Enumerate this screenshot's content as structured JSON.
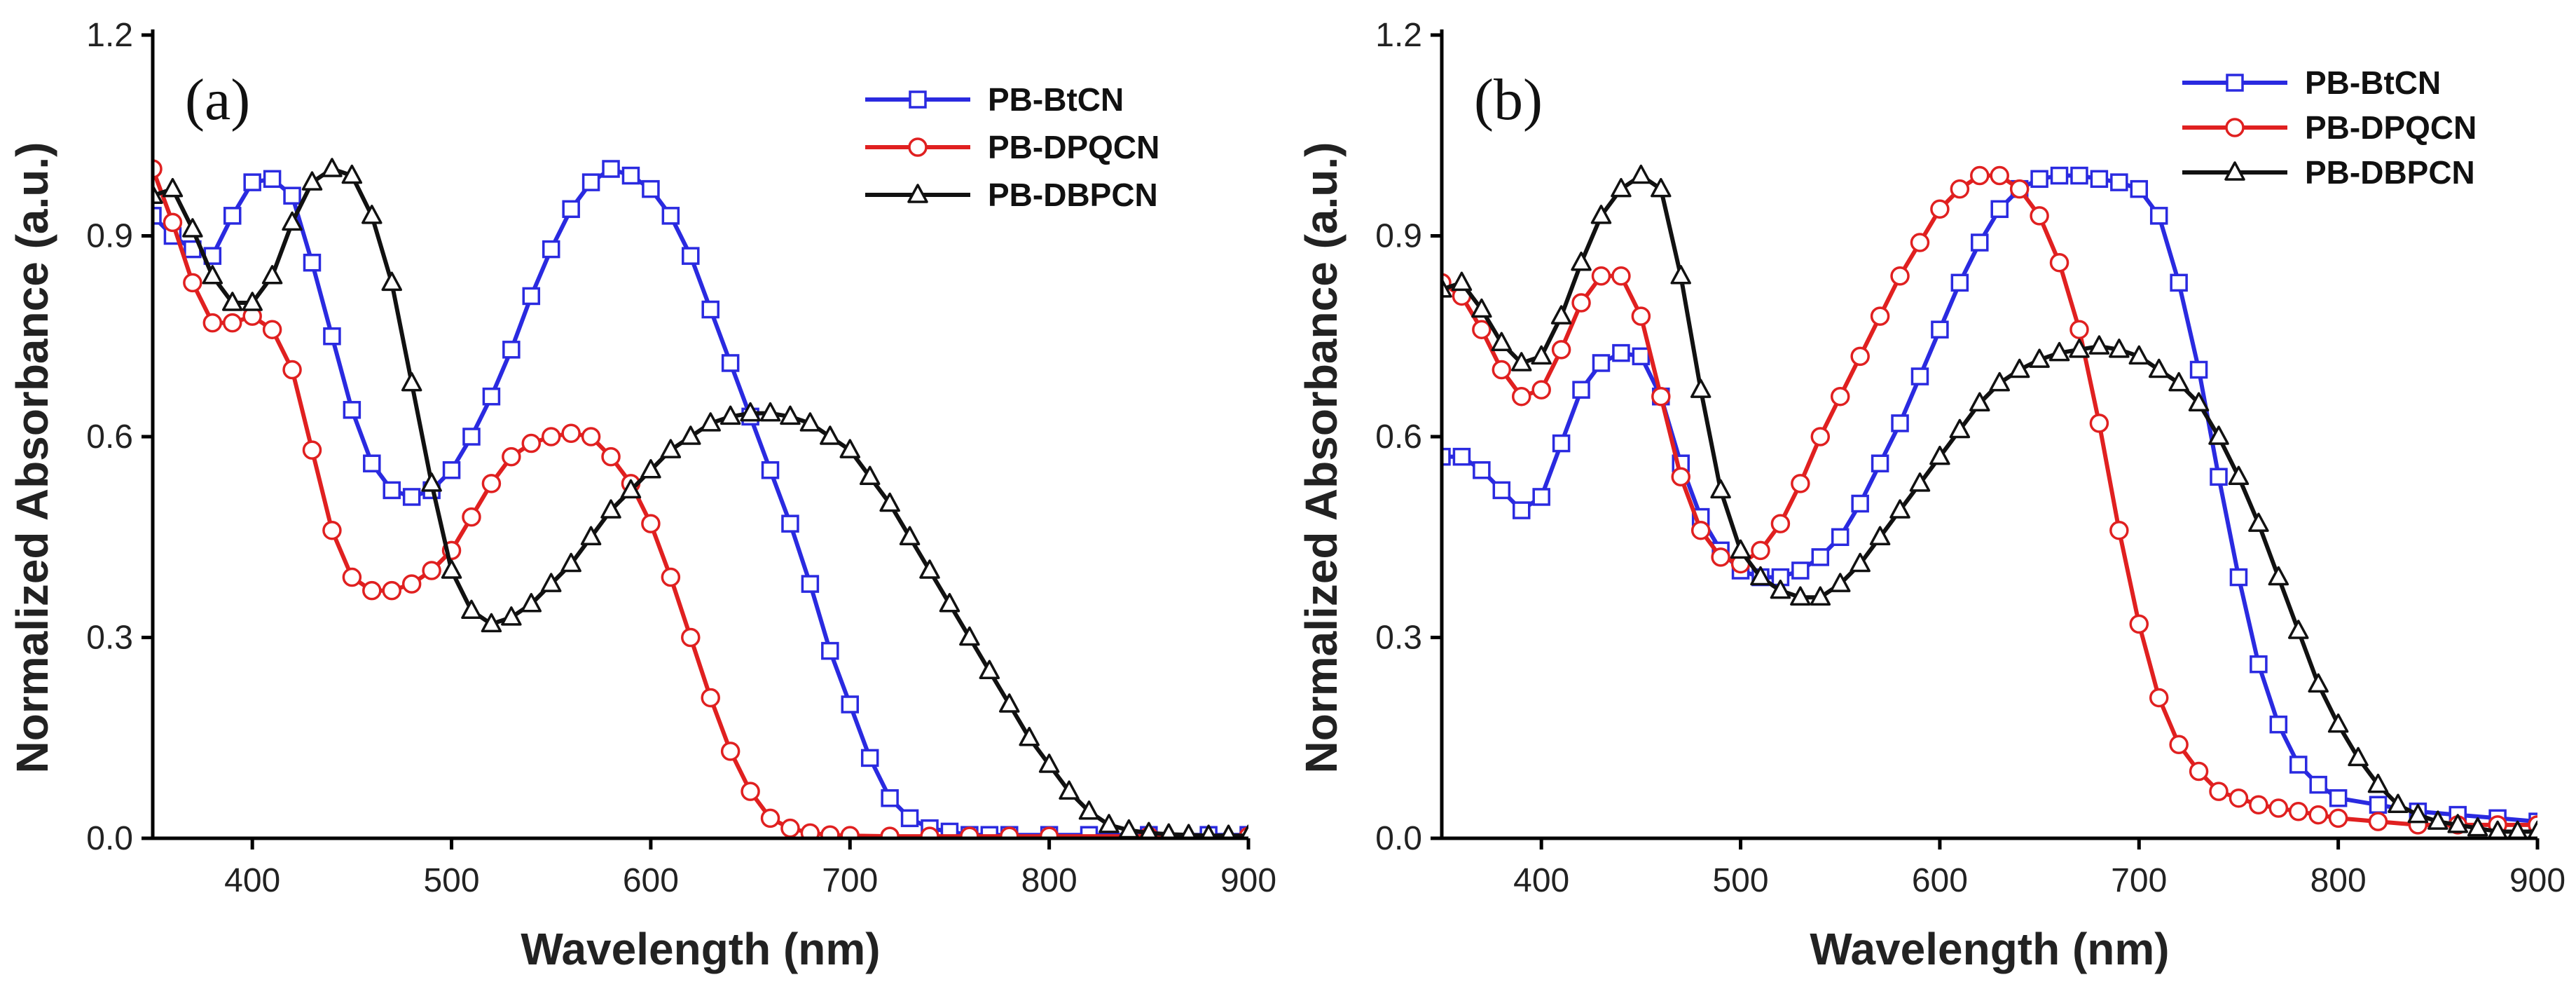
{
  "chart_data": [
    {
      "type": "line",
      "panel_label": "(a)",
      "xlabel": "Wavelength (nm)",
      "ylabel": "Normalized Absorbance (a.u.)",
      "xlim": [
        350,
        900
      ],
      "ylim": [
        0,
        1.2
      ],
      "xticks": [
        400,
        500,
        600,
        700,
        800,
        900
      ],
      "yticks": [
        "0.0",
        "0.3",
        "0.6",
        "0.9",
        "1.2"
      ],
      "legend_position": "top-right",
      "series": [
        {
          "name": "PB-BtCN",
          "color": "#2a2ae0",
          "marker": "square",
          "x": [
            350,
            360,
            370,
            380,
            390,
            400,
            410,
            420,
            430,
            440,
            450,
            460,
            470,
            480,
            490,
            500,
            510,
            520,
            530,
            540,
            550,
            560,
            570,
            580,
            590,
            600,
            610,
            620,
            630,
            640,
            650,
            660,
            670,
            680,
            690,
            700,
            710,
            720,
            730,
            740,
            750,
            760,
            770,
            780,
            800,
            820,
            850,
            880,
            900
          ],
          "y": [
            0.93,
            0.9,
            0.88,
            0.87,
            0.93,
            0.98,
            0.985,
            0.96,
            0.86,
            0.75,
            0.64,
            0.56,
            0.52,
            0.51,
            0.52,
            0.55,
            0.6,
            0.66,
            0.73,
            0.81,
            0.88,
            0.94,
            0.98,
            1.0,
            0.99,
            0.97,
            0.93,
            0.87,
            0.79,
            0.71,
            0.63,
            0.55,
            0.47,
            0.38,
            0.28,
            0.2,
            0.12,
            0.06,
            0.03,
            0.015,
            0.01,
            0.005,
            0.005,
            0.005,
            0.005,
            0.005,
            0.005,
            0.005,
            0.005
          ]
        },
        {
          "name": "PB-DPQCN",
          "color": "#e02020",
          "marker": "circle",
          "x": [
            350,
            360,
            370,
            380,
            390,
            400,
            410,
            420,
            430,
            440,
            450,
            460,
            470,
            480,
            490,
            500,
            510,
            520,
            530,
            540,
            550,
            560,
            570,
            580,
            590,
            600,
            610,
            620,
            630,
            640,
            650,
            660,
            670,
            680,
            690,
            700,
            720,
            740,
            760,
            780,
            800,
            850,
            900
          ],
          "y": [
            1.0,
            0.92,
            0.83,
            0.77,
            0.77,
            0.78,
            0.76,
            0.7,
            0.58,
            0.46,
            0.39,
            0.37,
            0.37,
            0.38,
            0.4,
            0.43,
            0.48,
            0.53,
            0.57,
            0.59,
            0.6,
            0.605,
            0.6,
            0.57,
            0.53,
            0.47,
            0.39,
            0.3,
            0.21,
            0.13,
            0.07,
            0.03,
            0.015,
            0.008,
            0.005,
            0.004,
            0.003,
            0.003,
            0.003,
            0.003,
            0.003,
            0.003,
            0.003
          ]
        },
        {
          "name": "PB-DBPCN",
          "color": "#111111",
          "marker": "triangle",
          "x": [
            350,
            360,
            370,
            380,
            390,
            400,
            410,
            420,
            430,
            440,
            450,
            460,
            470,
            480,
            490,
            500,
            510,
            520,
            530,
            540,
            550,
            560,
            570,
            580,
            590,
            600,
            610,
            620,
            630,
            640,
            650,
            660,
            670,
            680,
            690,
            700,
            710,
            720,
            730,
            740,
            750,
            760,
            770,
            780,
            790,
            800,
            810,
            820,
            830,
            840,
            850,
            860,
            870,
            880,
            890,
            900
          ],
          "y": [
            0.96,
            0.97,
            0.91,
            0.84,
            0.8,
            0.8,
            0.84,
            0.92,
            0.98,
            1.0,
            0.99,
            0.93,
            0.83,
            0.68,
            0.53,
            0.4,
            0.34,
            0.32,
            0.33,
            0.35,
            0.38,
            0.41,
            0.45,
            0.49,
            0.52,
            0.55,
            0.58,
            0.6,
            0.62,
            0.63,
            0.635,
            0.635,
            0.63,
            0.62,
            0.6,
            0.58,
            0.54,
            0.5,
            0.45,
            0.4,
            0.35,
            0.3,
            0.25,
            0.2,
            0.15,
            0.11,
            0.07,
            0.04,
            0.02,
            0.012,
            0.008,
            0.006,
            0.005,
            0.004,
            0.004,
            0.004
          ]
        }
      ]
    },
    {
      "type": "line",
      "panel_label": "(b)",
      "xlabel": "Wavelength (nm)",
      "ylabel": "Normalized Absorbance (a.u.)",
      "xlim": [
        350,
        900
      ],
      "ylim": [
        0,
        1.2
      ],
      "xticks": [
        400,
        500,
        600,
        700,
        800,
        900
      ],
      "yticks": [
        "0.0",
        "0.3",
        "0.6",
        "0.9",
        "1.2"
      ],
      "legend_position": "top-right",
      "series": [
        {
          "name": "PB-BtCN",
          "color": "#2a2ae0",
          "marker": "square",
          "x": [
            350,
            360,
            370,
            380,
            390,
            400,
            410,
            420,
            430,
            440,
            450,
            460,
            470,
            480,
            490,
            500,
            510,
            520,
            530,
            540,
            550,
            560,
            570,
            580,
            590,
            600,
            610,
            620,
            630,
            640,
            650,
            660,
            670,
            680,
            690,
            700,
            710,
            720,
            730,
            740,
            750,
            760,
            770,
            780,
            790,
            800,
            820,
            840,
            860,
            880,
            900
          ],
          "y": [
            0.57,
            0.57,
            0.55,
            0.52,
            0.49,
            0.51,
            0.59,
            0.67,
            0.71,
            0.725,
            0.72,
            0.66,
            0.56,
            0.48,
            0.43,
            0.4,
            0.39,
            0.39,
            0.4,
            0.42,
            0.45,
            0.5,
            0.56,
            0.62,
            0.69,
            0.76,
            0.83,
            0.89,
            0.94,
            0.97,
            0.985,
            0.99,
            0.99,
            0.985,
            0.98,
            0.97,
            0.93,
            0.83,
            0.7,
            0.54,
            0.39,
            0.26,
            0.17,
            0.11,
            0.08,
            0.06,
            0.05,
            0.04,
            0.035,
            0.03,
            0.025
          ]
        },
        {
          "name": "PB-DPQCN",
          "color": "#e02020",
          "marker": "circle",
          "x": [
            350,
            360,
            370,
            380,
            390,
            400,
            410,
            420,
            430,
            440,
            450,
            460,
            470,
            480,
            490,
            500,
            510,
            520,
            530,
            540,
            550,
            560,
            570,
            580,
            590,
            600,
            610,
            620,
            630,
            640,
            650,
            660,
            670,
            680,
            690,
            700,
            710,
            720,
            730,
            740,
            750,
            760,
            770,
            780,
            790,
            800,
            820,
            840,
            860,
            880,
            900
          ],
          "y": [
            0.83,
            0.81,
            0.76,
            0.7,
            0.66,
            0.67,
            0.73,
            0.8,
            0.84,
            0.84,
            0.78,
            0.66,
            0.54,
            0.46,
            0.42,
            0.41,
            0.43,
            0.47,
            0.53,
            0.6,
            0.66,
            0.72,
            0.78,
            0.84,
            0.89,
            0.94,
            0.97,
            0.99,
            0.99,
            0.97,
            0.93,
            0.86,
            0.76,
            0.62,
            0.46,
            0.32,
            0.21,
            0.14,
            0.1,
            0.07,
            0.06,
            0.05,
            0.045,
            0.04,
            0.035,
            0.03,
            0.025,
            0.02,
            0.02,
            0.02,
            0.02
          ]
        },
        {
          "name": "PB-DBPCN",
          "color": "#111111",
          "marker": "triangle",
          "x": [
            350,
            360,
            370,
            380,
            390,
            400,
            410,
            420,
            430,
            440,
            450,
            460,
            470,
            480,
            490,
            500,
            510,
            520,
            530,
            540,
            550,
            560,
            570,
            580,
            590,
            600,
            610,
            620,
            630,
            640,
            650,
            660,
            670,
            680,
            690,
            700,
            710,
            720,
            730,
            740,
            750,
            760,
            770,
            780,
            790,
            800,
            810,
            820,
            830,
            840,
            850,
            860,
            870,
            880,
            890,
            900
          ],
          "y": [
            0.82,
            0.83,
            0.79,
            0.74,
            0.71,
            0.72,
            0.78,
            0.86,
            0.93,
            0.97,
            0.99,
            0.97,
            0.84,
            0.67,
            0.52,
            0.43,
            0.39,
            0.37,
            0.36,
            0.36,
            0.38,
            0.41,
            0.45,
            0.49,
            0.53,
            0.57,
            0.61,
            0.65,
            0.68,
            0.7,
            0.715,
            0.725,
            0.73,
            0.735,
            0.73,
            0.72,
            0.7,
            0.68,
            0.65,
            0.6,
            0.54,
            0.47,
            0.39,
            0.31,
            0.23,
            0.17,
            0.12,
            0.08,
            0.05,
            0.035,
            0.025,
            0.02,
            0.015,
            0.01,
            0.01,
            0.01
          ]
        }
      ]
    }
  ]
}
